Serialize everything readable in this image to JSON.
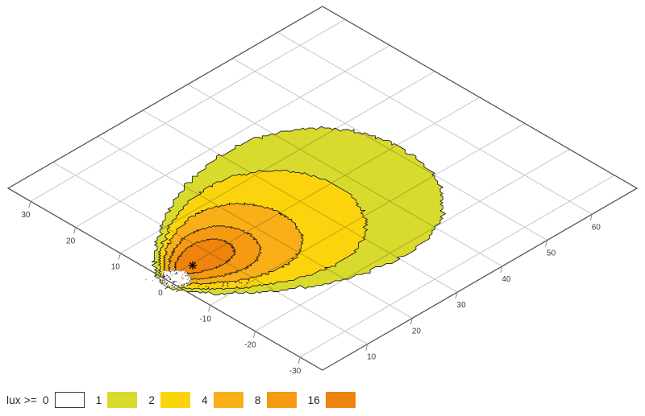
{
  "page": {
    "background": "#ffffff"
  },
  "chart_data": {
    "type": "contour",
    "title": "",
    "description": "Isolux contour map of illuminance on the ground plane shown in oblique perspective; nested lux bands radiate from a luminaire position marked with an asterisk",
    "legend": {
      "prefix_label": "lux >=",
      "levels": [
        {
          "value": 0,
          "color": "#ffffff"
        },
        {
          "value": 1,
          "color": "#d8da2e"
        },
        {
          "value": 2,
          "color": "#fbd40e"
        },
        {
          "value": 4,
          "color": "#f9af17"
        },
        {
          "value": 8,
          "color": "#f59a11"
        },
        {
          "value": 16,
          "color": "#ee830d"
        }
      ]
    },
    "axes": {
      "left": {
        "ticks": [
          30,
          20,
          10,
          0,
          -10,
          -20,
          -30
        ],
        "range": [
          35,
          -35
        ]
      },
      "right": {
        "ticks": [
          10,
          20,
          30,
          40,
          50,
          60
        ],
        "range": [
          0,
          70
        ]
      }
    },
    "grid": {
      "x_lines": [
        10,
        20,
        30,
        40,
        50,
        60
      ],
      "y_lines": [
        30,
        20,
        10,
        0,
        -10,
        -20,
        -30
      ]
    },
    "source_marker": {
      "symbol": "asterisk",
      "x": 5.7,
      "y": -0.4
    },
    "shadow_region": {
      "x": 1.2,
      "y": -1.1,
      "rx": 2.3,
      "ry": 2.4,
      "stippled": true
    },
    "contours": [
      {
        "level": 1,
        "color": "#d8da2e",
        "x_range": [
          -1.5,
          51.5
        ],
        "y_range": [
          -23,
          17.5
        ],
        "xL": -1.5,
        "xR": 51.5,
        "cy": -1.2,
        "ryT": 22.5,
        "ryB": 25.0,
        "q": 0.6
      },
      {
        "level": 2,
        "color": "#fbd40e",
        "x_range": [
          -0.7,
          37.0
        ],
        "y_range": [
          -16,
          13.5
        ],
        "xL": -0.7,
        "xR": 37.0,
        "cy": -1.0,
        "ryT": 16.5,
        "ryB": 18.0,
        "q": 0.5
      },
      {
        "level": 4,
        "color": "#f9af17",
        "x_range": [
          0.2,
          25.5
        ],
        "y_range": [
          -10.5,
          9.5
        ],
        "xL": 0.2,
        "xR": 25.5,
        "cy": -0.6,
        "ryT": 11.5,
        "ryB": 12.0,
        "q": 0.42
      },
      {
        "level": 8,
        "color": "#f59a11",
        "x_range": [
          1.2,
          18.0
        ],
        "y_range": [
          -7,
          6
        ],
        "xL": 1.2,
        "xR": 18.0,
        "cy": -0.4,
        "ryT": 7.6,
        "ryB": 7.6,
        "q": 0.35
      },
      {
        "level": 16,
        "color": "#ee830d",
        "x_range": [
          2.4,
          14.0
        ],
        "y_range": [
          -4.3,
          3.8
        ],
        "xL": 2.4,
        "xR": 14.0,
        "cy": 0.0,
        "ryT": 4.3,
        "ryB": 4.3,
        "q": 0.3
      }
    ]
  }
}
